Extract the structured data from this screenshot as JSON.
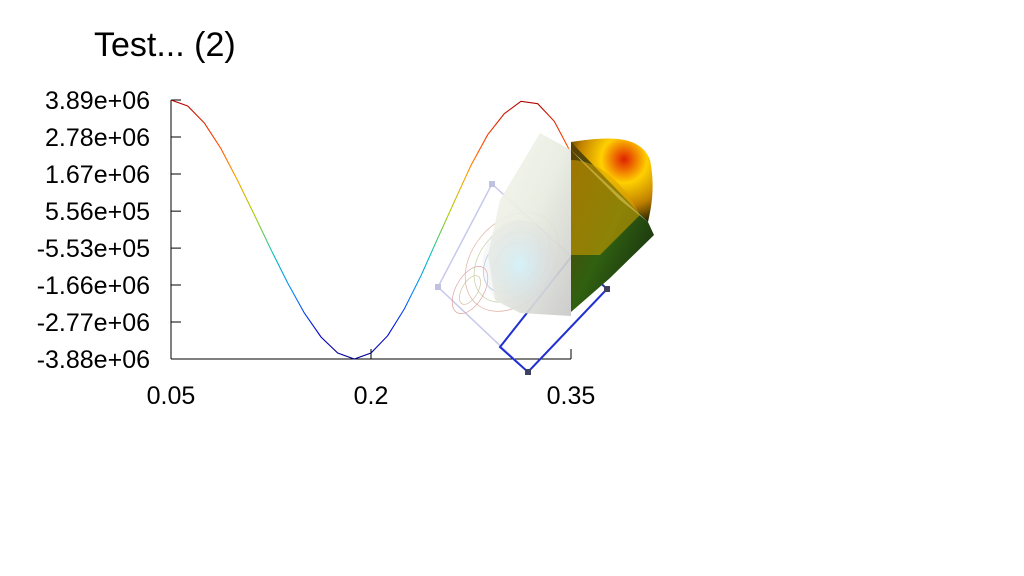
{
  "chart_data": {
    "type": "line",
    "title": "Test... (2)",
    "xlabel": "",
    "ylabel": "",
    "x_ticks": [
      "0.05",
      "0.2",
      "0.35"
    ],
    "x_tick_values": [
      0.05,
      0.2,
      0.35
    ],
    "y_ticks": [
      "3.89e+06",
      "2.78e+06",
      "1.67e+06",
      "5.56e+05",
      "-5.53e+05",
      "-1.66e+06",
      "-2.77e+06",
      "-3.88e+06"
    ],
    "y_tick_values": [
      3890000,
      2780000,
      1670000,
      556000,
      -553000,
      -1660000,
      -2770000,
      -3880000
    ],
    "xlim": [
      0.05,
      0.35
    ],
    "ylim": [
      -3880000,
      3890000
    ],
    "series": [
      {
        "x": [
          0.05,
          0.0625,
          0.075,
          0.0875,
          0.1,
          0.1125,
          0.125,
          0.1375,
          0.15,
          0.1625,
          0.175,
          0.1875,
          0.2,
          0.2125,
          0.225,
          0.2375,
          0.25,
          0.2625,
          0.275,
          0.2875,
          0.3,
          0.3125,
          0.325,
          0.3375,
          0.35
        ],
        "y": [
          3890000,
          3710000,
          3200000,
          2430000,
          1470000,
          450000,
          -600000,
          -1600000,
          -2500000,
          -3220000,
          -3700000,
          -3880000,
          -3700000,
          -3180000,
          -2380000,
          -1380000,
          -260000,
          840000,
          1930000,
          2850000,
          3480000,
          3850000,
          3780000,
          3250000,
          2300000
        ]
      }
    ],
    "colormap": [
      "#00008b",
      "#0000ff",
      "#00bfff",
      "#00ff80",
      "#80ff00",
      "#ffff00",
      "#ff8000",
      "#ff0000",
      "#8b0000"
    ],
    "overlay": {
      "type": "surface-3d-with-contours",
      "description": ""
    }
  }
}
